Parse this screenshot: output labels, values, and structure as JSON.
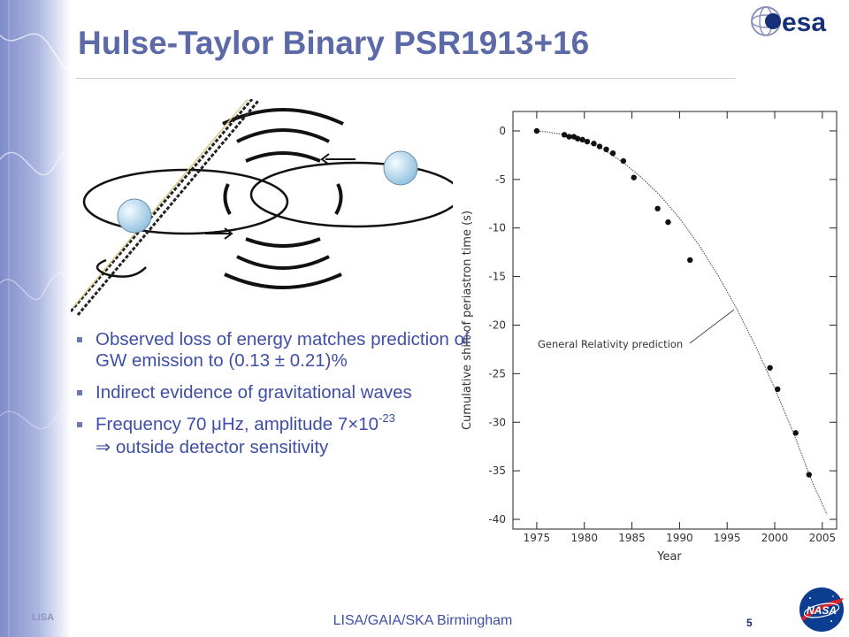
{
  "slide": {
    "title": "Hulse-Taylor Binary PSR1913+16",
    "bullets": [
      {
        "text": "Observed loss of energy matches prediction of GW emission to (0.13 ± 0.21)%"
      },
      {
        "text": "Indirect evidence of gravitational waves"
      },
      {
        "text_before": "Frequency 70 μHz, amplitude 7×10",
        "superscript": "-23",
        "text_after": "⇒ outside  detector sensitivity"
      }
    ],
    "footer_center": "LISA/GAIA/SKA Birmingham",
    "footer_left": "LISA",
    "page_number": "5",
    "logos": {
      "top_right": "esa",
      "bottom_right": "NASA"
    }
  },
  "colors": {
    "title": "#5c6aa8",
    "body_text": "#3f4fa6",
    "accent_band": "#8f9bd0",
    "esa_blue": "#16307a",
    "nasa_blue": "#0b3d91",
    "nasa_red": "#d3222a"
  },
  "icons": [
    "esa-logo",
    "nasa-logo",
    "binary-orbit-diagram",
    "square-bullet-icon"
  ],
  "chart_data": {
    "type": "scatter",
    "xlabel": "Year",
    "ylabel": "Cumulative shift of periastron time (s)",
    "xlim": [
      1972.5,
      2006.5
    ],
    "ylim": [
      -41,
      2
    ],
    "xticks": [
      1975,
      1980,
      1985,
      1990,
      1995,
      2000,
      2005
    ],
    "yticks": [
      0,
      -5,
      -10,
      -15,
      -20,
      -25,
      -30,
      -35,
      -40
    ],
    "grid": false,
    "annotation": "General Relativity prediction",
    "curve": {
      "name": "General Relativity prediction",
      "x": [
        1974.8,
        1976,
        1978,
        1980,
        1982,
        1984,
        1986,
        1988,
        1990,
        1992,
        1994,
        1996,
        1998,
        2000,
        2002,
        2004,
        2005.5
      ],
      "y": [
        0,
        -0.1,
        -0.4,
        -1.0,
        -1.9,
        -3.2,
        -4.8,
        -6.7,
        -9.0,
        -11.7,
        -14.8,
        -18.3,
        -22.2,
        -26.5,
        -31.2,
        -36.3,
        -39.5
      ]
    },
    "points": {
      "x": [
        1975.0,
        1977.9,
        1978.4,
        1978.9,
        1979.3,
        1979.8,
        1980.3,
        1981.0,
        1981.6,
        1982.3,
        1983.0,
        1984.1,
        1985.2,
        1987.7,
        1988.8,
        1991.1,
        1999.5,
        2000.3,
        2002.2,
        2003.6
      ],
      "y": [
        0.0,
        -0.4,
        -0.6,
        -0.6,
        -0.8,
        -0.9,
        -1.1,
        -1.3,
        -1.6,
        -1.9,
        -2.3,
        -3.1,
        -4.8,
        -8.0,
        -9.4,
        -13.3,
        -24.4,
        -26.6,
        -31.1,
        -35.4
      ]
    }
  }
}
